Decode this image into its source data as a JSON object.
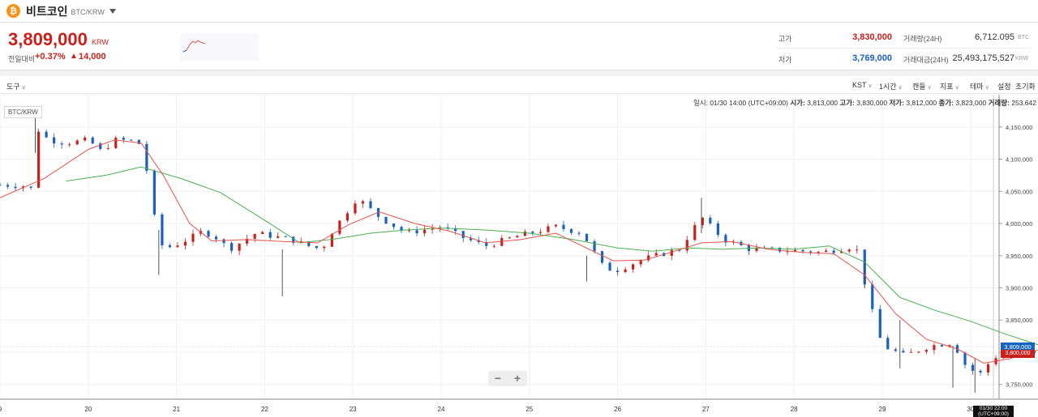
{
  "header": {
    "coin_icon_glyph": "₿",
    "coin_name": "비트코인",
    "pair": "BTC/KRW",
    "dropdown_icon": "caret-down-icon"
  },
  "quote": {
    "price": "3,809,000",
    "unit": "KRW",
    "change_label": "전일대비",
    "change_rate": "+0.37%",
    "change_arrow": "▲",
    "change_amount": "14,000",
    "high_label": "고가",
    "high_value": "3,830,000",
    "low_label": "저가",
    "low_value": "3,769,000",
    "volume_label": "거래량(24H)",
    "volume_value": "6,712.095",
    "volume_unit": "BTC",
    "amount_label": "거래대금(24H)",
    "amount_value": "25,493,175,527",
    "amount_unit": "KRW"
  },
  "toolbar": {
    "tools": "도구",
    "timezone": "KST",
    "interval": "1시간",
    "candle": "캔들",
    "indicator": "지표",
    "theme": "테마",
    "settings": "설정",
    "reset": "초기화"
  },
  "chart_meta": {
    "symbol_tag": "BTC/KRW",
    "ohlc_time_label": "일시:",
    "ohlc_time": "01/30 14:00 (UTC+09:00)",
    "open_label": "시가:",
    "open": "3,813,000",
    "high_label": "고가:",
    "high": "3,830,000",
    "low_label": "저가:",
    "low": "3,812,000",
    "close_label": "종가:",
    "close": "3,823,000",
    "vol_label": "거래량:",
    "vol": "253.642",
    "current_price_tag": "3,809,000",
    "second_price_tag": "3,800,000",
    "crosshair_time_1": "01/30 22:00",
    "crosshair_time_2": "(UTC+09:00)",
    "zoom_out": "−",
    "zoom_in": "+"
  },
  "colors": {
    "up": "#c8201b",
    "down": "#1b5fbf",
    "ma_short": "#e5534b",
    "ma_long": "#4caf50"
  },
  "chart_data": {
    "type": "candlestick",
    "x_labels": [
      "9",
      "20",
      "21",
      "22",
      "23",
      "24",
      "25",
      "26",
      "27",
      "28",
      "29",
      "30"
    ],
    "y_ticks": [
      4150000,
      4100000,
      4050000,
      4000000,
      3950000,
      3900000,
      3850000,
      3800000,
      3750000
    ],
    "ylim": [
      3727000,
      4185000
    ],
    "close_path": [
      [
        0.0,
        4060000
      ],
      [
        0.3,
        4058000
      ],
      [
        0.38,
        4052000
      ],
      [
        0.4,
        4150000
      ],
      [
        0.55,
        4130000
      ],
      [
        0.75,
        4125000
      ],
      [
        1.0,
        4130000
      ],
      [
        1.15,
        4112000
      ],
      [
        1.3,
        4130000
      ],
      [
        1.55,
        4128000
      ],
      [
        1.6,
        4120000
      ],
      [
        1.7,
        4060000
      ],
      [
        1.75,
        4010000
      ],
      [
        1.85,
        3960000
      ],
      [
        2.05,
        3970000
      ],
      [
        2.3,
        3988000
      ],
      [
        2.45,
        3978000
      ],
      [
        2.6,
        3960000
      ],
      [
        2.9,
        3985000
      ],
      [
        3.3,
        3975000
      ],
      [
        3.5,
        3965000
      ],
      [
        3.65,
        3960000
      ],
      [
        3.75,
        3985000
      ],
      [
        4.05,
        4040000
      ],
      [
        4.3,
        4010000
      ],
      [
        4.6,
        3985000
      ],
      [
        5.0,
        3995000
      ],
      [
        5.25,
        3978000
      ],
      [
        5.5,
        3965000
      ],
      [
        5.85,
        3980000
      ],
      [
        6.3,
        3995000
      ],
      [
        6.6,
        3985000
      ],
      [
        6.85,
        3930000
      ],
      [
        7.0,
        3928000
      ],
      [
        7.3,
        3945000
      ],
      [
        7.7,
        3960000
      ],
      [
        7.95,
        4010000
      ],
      [
        8.2,
        3975000
      ],
      [
        8.5,
        3960000
      ],
      [
        9.0,
        3958000
      ],
      [
        9.3,
        3955000
      ],
      [
        9.5,
        3960000
      ],
      [
        9.7,
        3965000
      ],
      [
        9.85,
        3880000
      ],
      [
        10.0,
        3810000
      ],
      [
        10.25,
        3795000
      ],
      [
        10.55,
        3810000
      ],
      [
        10.8,
        3815000
      ],
      [
        10.95,
        3778000
      ],
      [
        11.1,
        3765000
      ],
      [
        11.25,
        3790000
      ],
      [
        11.5,
        3810000
      ],
      [
        11.7,
        3795000
      ],
      [
        11.85,
        3805000
      ],
      [
        12.0,
        3812000
      ],
      [
        12.05,
        3809000
      ]
    ],
    "ma_short": [
      [
        0.0,
        4040000
      ],
      [
        0.5,
        4070000
      ],
      [
        1.0,
        4115000
      ],
      [
        1.3,
        4130000
      ],
      [
        1.6,
        4125000
      ],
      [
        1.85,
        4075000
      ],
      [
        2.15,
        4000000
      ],
      [
        2.4,
        3973000
      ],
      [
        2.8,
        3975000
      ],
      [
        3.2,
        3972000
      ],
      [
        3.6,
        3970000
      ],
      [
        3.95,
        3998000
      ],
      [
        4.3,
        4018000
      ],
      [
        4.7,
        4000000
      ],
      [
        5.1,
        3988000
      ],
      [
        5.5,
        3970000
      ],
      [
        5.9,
        3975000
      ],
      [
        6.3,
        3985000
      ],
      [
        6.6,
        3965000
      ],
      [
        6.95,
        3942000
      ],
      [
        7.3,
        3943000
      ],
      [
        7.6,
        3955000
      ],
      [
        7.95,
        3970000
      ],
      [
        8.3,
        3972000
      ],
      [
        8.7,
        3960000
      ],
      [
        9.1,
        3955000
      ],
      [
        9.45,
        3953000
      ],
      [
        9.8,
        3920000
      ],
      [
        10.15,
        3860000
      ],
      [
        10.5,
        3820000
      ],
      [
        10.85,
        3805000
      ],
      [
        11.15,
        3783000
      ],
      [
        11.45,
        3790000
      ],
      [
        11.75,
        3803000
      ],
      [
        12.0,
        3805000
      ],
      [
        12.1,
        3803000
      ]
    ],
    "ma_long": [
      [
        0.75,
        4066000
      ],
      [
        1.2,
        4075000
      ],
      [
        1.6,
        4088000
      ],
      [
        2.05,
        4070000
      ],
      [
        2.5,
        4048000
      ],
      [
        3.0,
        4005000
      ],
      [
        3.4,
        3970000
      ],
      [
        3.8,
        3976000
      ],
      [
        4.2,
        3985000
      ],
      [
        4.6,
        3990000
      ],
      [
        5.0,
        3993000
      ],
      [
        5.5,
        3990000
      ],
      [
        6.0,
        3985000
      ],
      [
        6.5,
        3975000
      ],
      [
        7.0,
        3962000
      ],
      [
        7.4,
        3957000
      ],
      [
        7.8,
        3962000
      ],
      [
        8.2,
        3960000
      ],
      [
        8.6,
        3962000
      ],
      [
        9.0,
        3960000
      ],
      [
        9.4,
        3965000
      ],
      [
        9.8,
        3940000
      ],
      [
        10.2,
        3885000
      ],
      [
        10.6,
        3865000
      ],
      [
        11.0,
        3848000
      ],
      [
        11.4,
        3828000
      ],
      [
        11.8,
        3810000
      ],
      [
        12.1,
        3806000
      ]
    ],
    "spikes": [
      [
        0.4,
        4175000,
        4110000
      ],
      [
        1.8,
        3990000,
        3920000
      ],
      [
        3.2,
        3960000,
        3887000
      ],
      [
        6.65,
        3950000,
        3910000
      ],
      [
        7.95,
        4040000,
        3985000
      ],
      [
        9.8,
        3940000,
        3900000
      ],
      [
        10.2,
        3850000,
        3775000
      ],
      [
        10.8,
        3810000,
        3745000
      ],
      [
        11.05,
        3790000,
        3737000
      ]
    ]
  }
}
